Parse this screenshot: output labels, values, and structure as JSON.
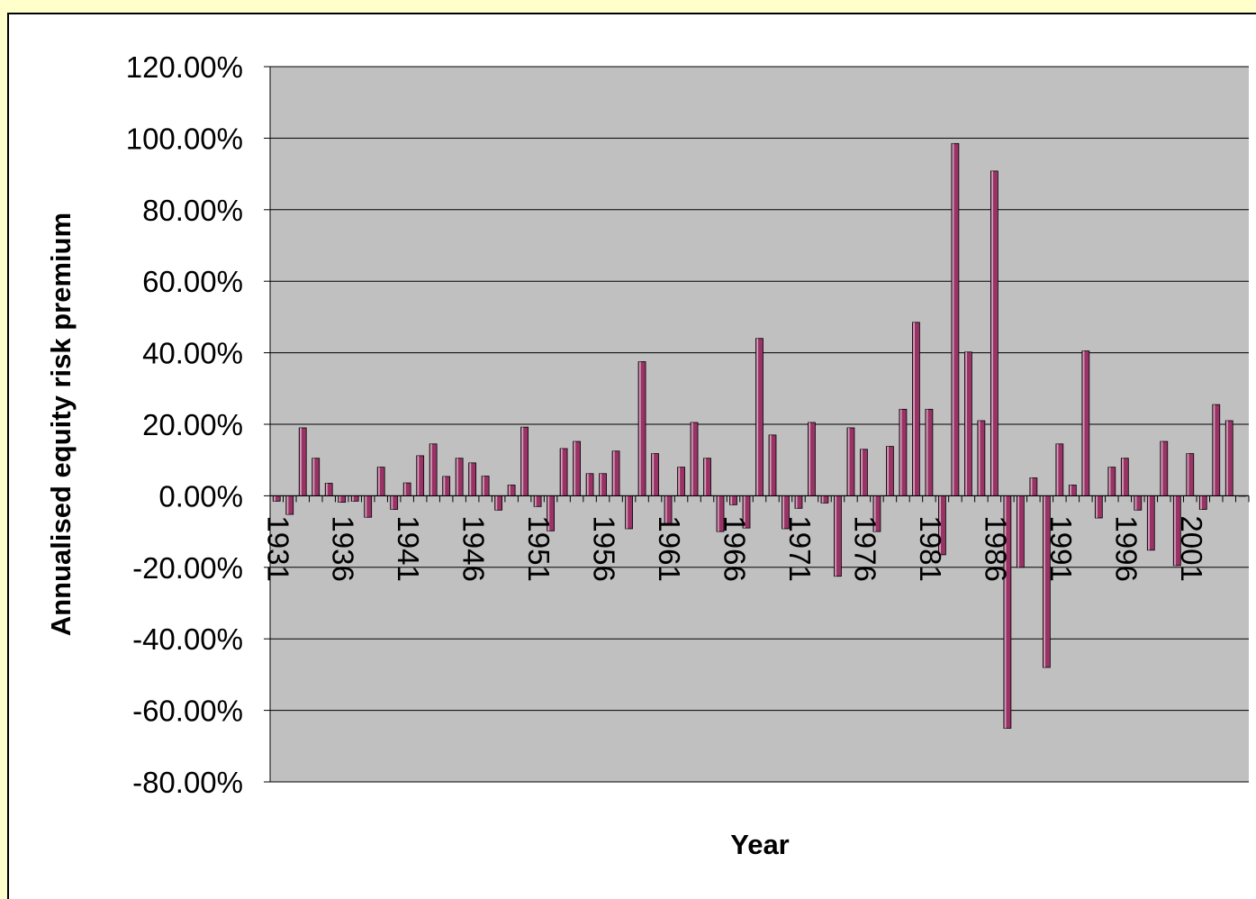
{
  "colors": {
    "page_background": "#ffffcc",
    "chart_background": "#ffffff",
    "plot_background": "#c0c0c0",
    "bar_fill": "#993366",
    "bar_highlight": "#ffffff",
    "gridline": "#000000"
  },
  "chart_data": {
    "type": "bar",
    "title": "",
    "xlabel": "Year",
    "ylabel": "Annualised equity risk premium",
    "ylim": [
      -0.8,
      1.2
    ],
    "yticks": [
      1.2,
      1.0,
      0.8,
      0.6,
      0.4,
      0.2,
      0.0,
      -0.2,
      -0.4,
      -0.6,
      -0.8
    ],
    "ytick_labels": [
      "120.00%",
      "100.00%",
      "80.00%",
      "60.00%",
      "40.00%",
      "20.00%",
      "0.00%",
      "-20.00%",
      "-40.00%",
      "-60.00%",
      "-80.00%"
    ],
    "xtick_labels": [
      "1931",
      "1936",
      "1941",
      "1946",
      "1951",
      "1956",
      "1961",
      "1966",
      "1971",
      "1976",
      "1981",
      "1986",
      "1991",
      "1996",
      "2001"
    ],
    "xtick_interval": 5,
    "grid": {
      "horizontal": true,
      "vertical": false
    },
    "legend": "none",
    "series": [
      {
        "x": [
          1931,
          1932,
          1933,
          1934,
          1935,
          1936,
          1937,
          1938,
          1939,
          1940,
          1941,
          1942,
          1943,
          1944,
          1945,
          1946,
          1947,
          1948,
          1949,
          1950,
          1951,
          1952,
          1953,
          1954,
          1955,
          1956,
          1957,
          1958,
          1959,
          1960,
          1961,
          1962,
          1963,
          1964,
          1965,
          1966,
          1967,
          1968,
          1969,
          1970,
          1971,
          1972,
          1973,
          1974,
          1975,
          1976,
          1977,
          1978,
          1979,
          1980,
          1981,
          1982,
          1983,
          1984,
          1985,
          1986,
          1987,
          1988,
          1989,
          1990,
          1991,
          1992,
          1993,
          1994,
          1995,
          1996,
          1997,
          1998,
          1999,
          2000,
          2001,
          2002,
          2003,
          2004,
          2005
        ],
        "values": [
          -0.015,
          -0.052,
          0.19,
          0.105,
          0.035,
          -0.018,
          -0.015,
          -0.06,
          0.08,
          -0.038,
          0.036,
          0.112,
          0.145,
          0.054,
          0.105,
          0.092,
          0.055,
          -0.04,
          0.03,
          0.192,
          -0.03,
          -0.098,
          0.132,
          0.152,
          0.062,
          0.062,
          0.125,
          -0.092,
          0.375,
          0.118,
          -0.08,
          0.08,
          0.205,
          0.105,
          -0.1,
          -0.025,
          -0.09,
          0.44,
          0.17,
          -0.092,
          -0.035,
          0.205,
          -0.02,
          -0.225,
          0.19,
          0.13,
          -0.1,
          0.138,
          0.242,
          0.485,
          0.242,
          -0.165,
          0.985,
          0.402,
          0.21,
          0.908,
          -0.65,
          -0.2,
          0.05,
          -0.48,
          0.145,
          0.03,
          0.405,
          -0.062,
          0.08,
          0.105,
          -0.04,
          -0.152,
          0.152,
          -0.195,
          0.118,
          -0.038,
          0.255,
          0.21,
          0.0
        ]
      }
    ]
  }
}
